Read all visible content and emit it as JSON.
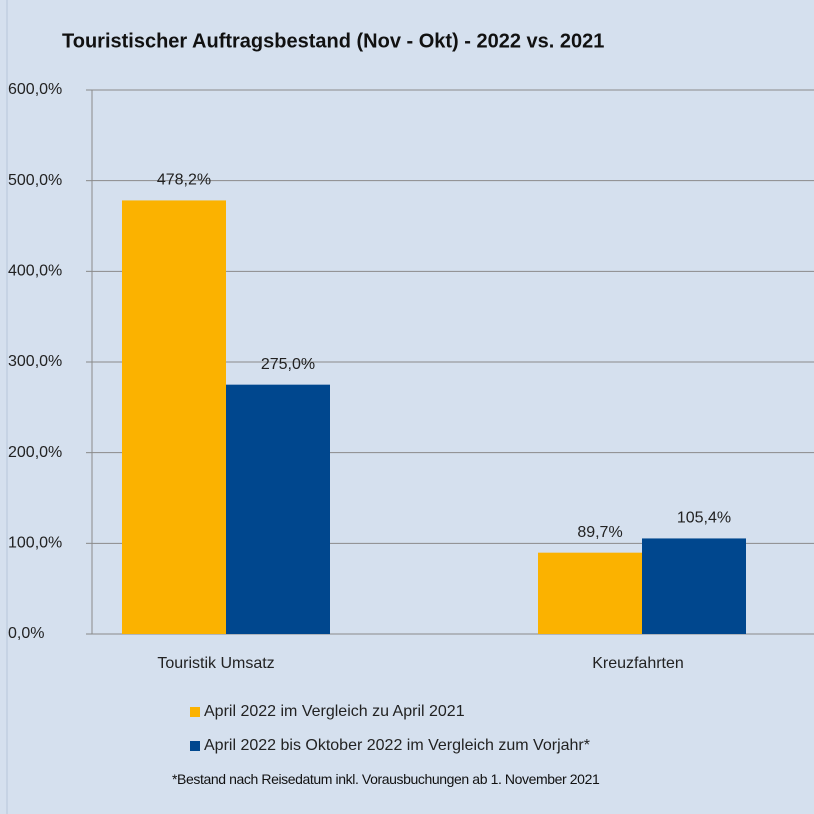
{
  "chart_data": {
    "type": "bar",
    "title": "Touristischer Auftragsbestand (Nov - Okt) - 2022 vs. 2021",
    "categories": [
      "Touristik Umsatz",
      "Kreuzfahrten"
    ],
    "series": [
      {
        "name": "April 2022 im Vergleich zu April 2021",
        "color": "#fbb200",
        "values": [
          478.2,
          89.7
        ],
        "value_labels": [
          "478,2%",
          "89,7%"
        ]
      },
      {
        "name": "April 2022 bis Oktober 2022 im Vergleich zum Vorjahr*",
        "color": "#00478e",
        "values": [
          275.0,
          105.4
        ],
        "value_labels": [
          "275,0%",
          "105,4%"
        ]
      }
    ],
    "ylim": [
      0,
      600
    ],
    "yticks": [
      {
        "value": 0,
        "label": "0,0%"
      },
      {
        "value": 100,
        "label": "100,0%"
      },
      {
        "value": 200,
        "label": "200,0%"
      },
      {
        "value": 300,
        "label": "300,0%"
      },
      {
        "value": 400,
        "label": "400,0%"
      },
      {
        "value": 500,
        "label": "500,0%"
      },
      {
        "value": 600,
        "label": "600,0%"
      }
    ],
    "grid": true,
    "legend": "bottom",
    "footnote": "*Bestand nach Reisedatum inkl. Vorausbuchungen ab 1. November 2021"
  }
}
